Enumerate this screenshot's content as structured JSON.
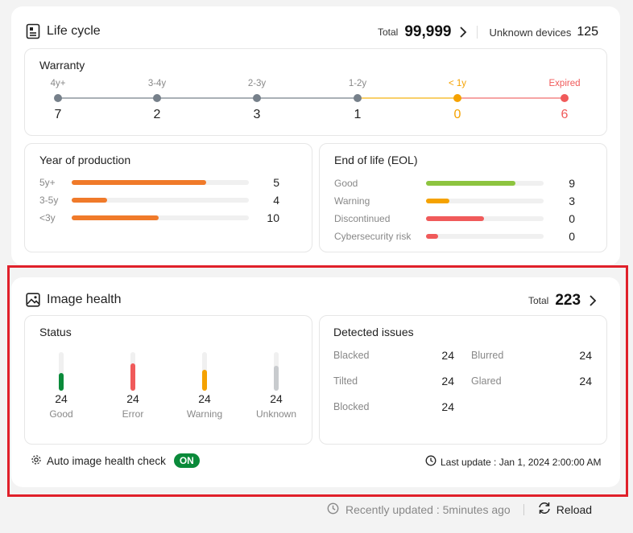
{
  "lifecycle": {
    "title": "Life cycle",
    "total_label": "Total",
    "total_value": "99,999",
    "unknown_label": "Unknown devices",
    "unknown_value": "125",
    "warranty": {
      "title": "Warranty",
      "points": [
        {
          "label": "4y+",
          "value": "7",
          "color": "#76808a"
        },
        {
          "label": "3-4y",
          "value": "2",
          "color": "#76808a"
        },
        {
          "label": "2-3y",
          "value": "3",
          "color": "#76808a"
        },
        {
          "label": "1-2y",
          "value": "1",
          "color": "#76808a"
        },
        {
          "label": "< 1y",
          "value": "0",
          "color": "#f5a200"
        },
        {
          "label": "Expired",
          "value": "6",
          "color": "#f05a5a"
        }
      ]
    },
    "production": {
      "title": "Year of production",
      "rows": [
        {
          "label": "5y+",
          "value": "5",
          "fraction": 0.76,
          "color": "#f07a2a"
        },
        {
          "label": "3-5y",
          "value": "4",
          "fraction": 0.2,
          "color": "#f07a2a"
        },
        {
          "label": "<3y",
          "value": "10",
          "fraction": 0.49,
          "color": "#f07a2a"
        }
      ]
    },
    "eol": {
      "title": "End of life (EOL)",
      "rows": [
        {
          "label": "Good",
          "value": "9",
          "fraction": 0.76,
          "color": "#8dc43f"
        },
        {
          "label": "Warning",
          "value": "3",
          "fraction": 0.2,
          "color": "#f5a200"
        },
        {
          "label": "Discontinued",
          "value": "0",
          "fraction": 0.49,
          "color": "#f05a5a"
        },
        {
          "label": "Cybersecurity risk",
          "value": "0",
          "fraction": 0.1,
          "color": "#f05a5a"
        }
      ]
    }
  },
  "image_health": {
    "title": "Image health",
    "total_label": "Total",
    "total_value": "223",
    "status": {
      "title": "Status",
      "items": [
        {
          "label": "Good",
          "value": "24",
          "fraction": 0.45,
          "color": "#0a8a3a"
        },
        {
          "label": "Error",
          "value": "24",
          "fraction": 0.7,
          "color": "#f05a5a"
        },
        {
          "label": "Warning",
          "value": "24",
          "fraction": 0.55,
          "color": "#f5a200"
        },
        {
          "label": "Unknown",
          "value": "24",
          "fraction": 0.65,
          "color": "#c8cbce"
        }
      ]
    },
    "issues": {
      "title": "Detected issues",
      "items": [
        {
          "label": "Blacked",
          "value": "24"
        },
        {
          "label": "Blurred",
          "value": "24"
        },
        {
          "label": "Tilted",
          "value": "24"
        },
        {
          "label": "Glared",
          "value": "24"
        },
        {
          "label": "Blocked",
          "value": "24"
        }
      ]
    },
    "auto_check_label": "Auto image health check",
    "auto_check_state": "ON",
    "last_update": "Last update : Jan 1, 2024 2:00:00 AM"
  },
  "footer": {
    "recent": "Recently updated : 5minutes ago",
    "reload": "Reload"
  }
}
